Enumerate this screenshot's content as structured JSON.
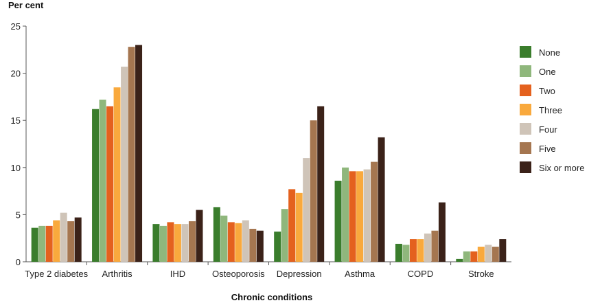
{
  "chart_data": {
    "type": "bar",
    "ylabel": "Per cent",
    "xlabel": "Chronic conditions",
    "ylim": [
      0,
      25
    ],
    "yticks": [
      0,
      5,
      10,
      15,
      20,
      25
    ],
    "grid": false,
    "legend_position": "right",
    "categories": [
      "Type 2 diabetes",
      "Arthritis",
      "IHD",
      "Osteoporosis",
      "Depression",
      "Asthma",
      "COPD",
      "Stroke"
    ],
    "series": [
      {
        "name": "None",
        "color": "#3a7d2c",
        "values": [
          3.6,
          16.2,
          4.0,
          5.8,
          3.2,
          8.6,
          1.9,
          0.3
        ]
      },
      {
        "name": "One",
        "color": "#8fb77c",
        "values": [
          3.8,
          17.2,
          3.8,
          4.9,
          5.6,
          10.0,
          1.8,
          1.1
        ]
      },
      {
        "name": "Two",
        "color": "#e4611e",
        "values": [
          3.8,
          16.5,
          4.2,
          4.2,
          7.7,
          9.6,
          2.4,
          1.1
        ]
      },
      {
        "name": "Three",
        "color": "#f9a93d",
        "values": [
          4.4,
          18.5,
          4.0,
          4.1,
          7.3,
          9.6,
          2.4,
          1.6
        ]
      },
      {
        "name": "Four",
        "color": "#cfc4b8",
        "values": [
          5.2,
          20.7,
          4.0,
          4.4,
          11.0,
          9.8,
          3.0,
          1.8
        ]
      },
      {
        "name": "Five",
        "color": "#a57650",
        "values": [
          4.3,
          22.8,
          4.3,
          3.5,
          15.0,
          10.6,
          3.3,
          1.6
        ]
      },
      {
        "name": "Six or more",
        "color": "#3b2219",
        "values": [
          4.7,
          23.0,
          5.5,
          3.3,
          16.5,
          13.2,
          6.3,
          2.4
        ]
      }
    ]
  }
}
